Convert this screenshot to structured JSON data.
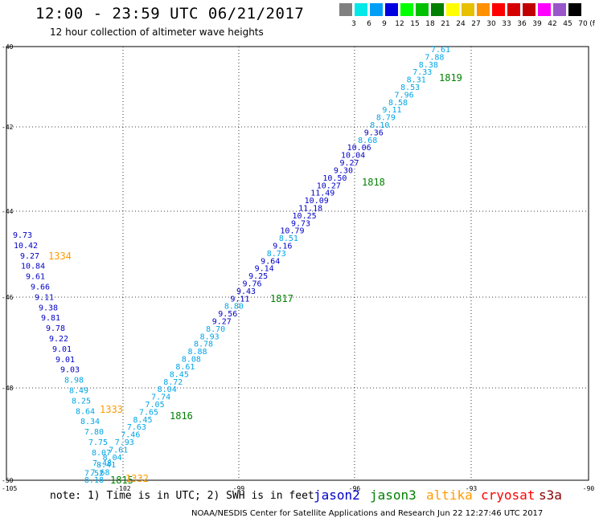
{
  "header": {
    "title": "12:00 - 23:59 UTC 06/21/2017",
    "subtitle": "12 hour collection of altimeter wave heights"
  },
  "legend": {
    "unit": "(ft)",
    "bins": [
      {
        "label": "3",
        "color": "#808080"
      },
      {
        "label": "6",
        "color": "#00e8e8"
      },
      {
        "label": "9",
        "color": "#009ff5"
      },
      {
        "label": "12",
        "color": "#0000e0"
      },
      {
        "label": "15",
        "color": "#00ff00"
      },
      {
        "label": "18",
        "color": "#00c000"
      },
      {
        "label": "21",
        "color": "#008000"
      },
      {
        "label": "24",
        "color": "#ffff00"
      },
      {
        "label": "27",
        "color": "#e7c000"
      },
      {
        "label": "30",
        "color": "#ff9000"
      },
      {
        "label": "33",
        "color": "#ff0000"
      },
      {
        "label": "36",
        "color": "#d60000"
      },
      {
        "label": "39",
        "color": "#c00000"
      },
      {
        "label": "42",
        "color": "#ff00ff"
      },
      {
        "label": "45",
        "color": "#9955c9"
      },
      {
        "label": "70",
        "color": "#000000"
      }
    ]
  },
  "axes": {
    "lon_labels": [
      "-105",
      "-102",
      "-99",
      "-96",
      "-93",
      "-90"
    ],
    "lat_labels": [
      "-40",
      "-42",
      "-44",
      "-46",
      "-48",
      "-50"
    ]
  },
  "colors": {
    "jason2": "#0000c8",
    "jason3": "#008000",
    "altika": "#ff9900",
    "cryosat": "#ff0000",
    "s3a": "#8b0000",
    "light": "#00a5e6"
  },
  "satellites": [
    {
      "name": "jason2",
      "color": "#0000c8"
    },
    {
      "name": "jason3",
      "color": "#008000"
    },
    {
      "name": "altika",
      "color": "#ff9900"
    },
    {
      "name": "cryosat",
      "color": "#ff0000"
    },
    {
      "name": "s3a",
      "color": "#8b0000"
    }
  ],
  "times": {
    "t1819": "1819",
    "t1818": "1818",
    "t1817": "1817",
    "t1816": "1816",
    "t1815": "1815",
    "t1334": "1334",
    "t1333": "1333",
    "t1332": "1332"
  },
  "track_diagonal": [
    {
      "v": "7.61",
      "c": "light"
    },
    {
      "v": "7.88",
      "c": "light"
    },
    {
      "v": "8.38",
      "c": "light"
    },
    {
      "v": "7.33",
      "c": "light"
    },
    {
      "v": "8.31",
      "c": "light"
    },
    {
      "v": "8.53",
      "c": "light"
    },
    {
      "v": "7.96",
      "c": "light"
    },
    {
      "v": "8.58",
      "c": "light"
    },
    {
      "v": "9.11",
      "c": "light"
    },
    {
      "v": "8.79",
      "c": "light"
    },
    {
      "v": "8.10",
      "c": "light"
    },
    {
      "v": "9.36",
      "c": "dark"
    },
    {
      "v": "8.68",
      "c": "light"
    },
    {
      "v": "10.06",
      "c": "dark"
    },
    {
      "v": "10.04",
      "c": "dark"
    },
    {
      "v": "9.27",
      "c": "dark"
    },
    {
      "v": "9.30",
      "c": "dark"
    },
    {
      "v": "10.50",
      "c": "dark"
    },
    {
      "v": "10.27",
      "c": "dark"
    },
    {
      "v": "11.49",
      "c": "dark"
    },
    {
      "v": "10.09",
      "c": "dark"
    },
    {
      "v": "11.18",
      "c": "dark"
    },
    {
      "v": "10.25",
      "c": "dark"
    },
    {
      "v": "9.73",
      "c": "dark"
    },
    {
      "v": "10.79",
      "c": "dark"
    },
    {
      "v": "8.51",
      "c": "light"
    },
    {
      "v": "9.16",
      "c": "dark"
    },
    {
      "v": "8.73",
      "c": "light"
    },
    {
      "v": "9.64",
      "c": "dark"
    },
    {
      "v": "9.14",
      "c": "dark"
    },
    {
      "v": "9.25",
      "c": "dark"
    },
    {
      "v": "9.76",
      "c": "dark"
    },
    {
      "v": "9.43",
      "c": "dark"
    },
    {
      "v": "9.11",
      "c": "dark"
    },
    {
      "v": "8.80",
      "c": "light"
    },
    {
      "v": "9.56",
      "c": "dark"
    },
    {
      "v": "9.27",
      "c": "dark"
    },
    {
      "v": "8.70",
      "c": "light"
    },
    {
      "v": "8.93",
      "c": "light"
    },
    {
      "v": "8.78",
      "c": "light"
    },
    {
      "v": "8.88",
      "c": "light"
    },
    {
      "v": "8.08",
      "c": "light"
    },
    {
      "v": "8.61",
      "c": "light"
    },
    {
      "v": "8.45",
      "c": "light"
    },
    {
      "v": "8.72",
      "c": "light"
    },
    {
      "v": "8.04",
      "c": "light"
    },
    {
      "v": "7.74",
      "c": "light"
    },
    {
      "v": "7.05",
      "c": "light"
    },
    {
      "v": "7.65",
      "c": "light"
    },
    {
      "v": "8.45",
      "c": "light"
    },
    {
      "v": "7.63",
      "c": "light"
    },
    {
      "v": "7.46",
      "c": "light"
    },
    {
      "v": "7.93",
      "c": "light"
    },
    {
      "v": "7.61",
      "c": "light"
    },
    {
      "v": "8.04",
      "c": "light"
    },
    {
      "v": "8.41",
      "c": "light"
    },
    {
      "v": "7.68",
      "c": "light"
    },
    {
      "v": "8.18",
      "c": "light"
    }
  ],
  "track_left": [
    {
      "v": "9.73",
      "c": "dark"
    },
    {
      "v": "10.42",
      "c": "dark"
    },
    {
      "v": "9.27",
      "c": "dark"
    },
    {
      "v": "10.84",
      "c": "dark"
    },
    {
      "v": "9.61",
      "c": "dark"
    },
    {
      "v": "9.66",
      "c": "dark"
    },
    {
      "v": "9.11",
      "c": "dark"
    },
    {
      "v": "9.38",
      "c": "dark"
    },
    {
      "v": "9.81",
      "c": "dark"
    },
    {
      "v": "9.78",
      "c": "dark"
    },
    {
      "v": "9.22",
      "c": "dark"
    },
    {
      "v": "9.01",
      "c": "dark"
    },
    {
      "v": "9.01",
      "c": "dark"
    },
    {
      "v": "9.03",
      "c": "dark"
    },
    {
      "v": "8.98",
      "c": "light"
    },
    {
      "v": "8.49",
      "c": "light"
    },
    {
      "v": "8.25",
      "c": "light"
    },
    {
      "v": "8.64",
      "c": "light"
    },
    {
      "v": "8.34",
      "c": "light"
    },
    {
      "v": "7.80",
      "c": "light"
    },
    {
      "v": "7.75",
      "c": "light"
    },
    {
      "v": "8.07",
      "c": "light"
    },
    {
      "v": "7.48",
      "c": "light"
    },
    {
      "v": "7.52",
      "c": "light"
    }
  ],
  "footer": {
    "note": "note: 1) Time is in UTC; 2) SWH is in feet",
    "credit": "NOAA/NESDIS Center for Satellite Applications and Research   Jun 22 12:27:46 UTC 2017"
  }
}
